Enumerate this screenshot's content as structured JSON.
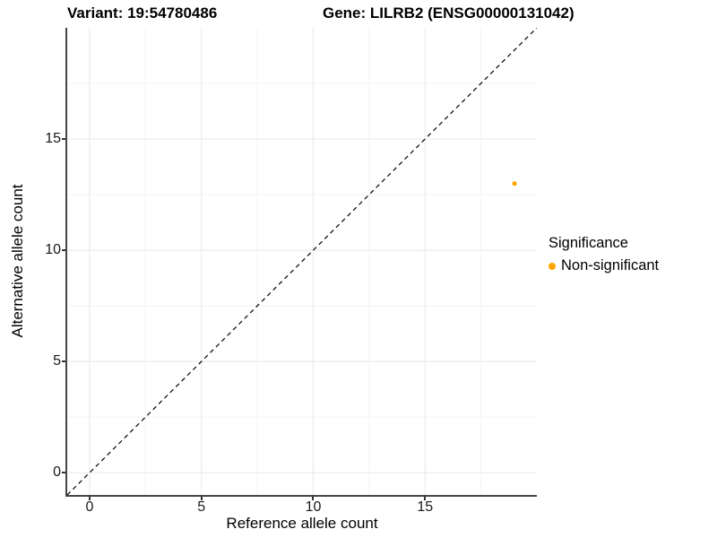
{
  "titles": {
    "variant": "Variant: 19:54780486",
    "gene": "Gene: LILRB2 (ENSG00000131042)"
  },
  "axes": {
    "x_label": "Reference allele count",
    "y_label": "Alternative allele count"
  },
  "legend": {
    "title": "Significance",
    "items": [
      {
        "label": "Non-significant",
        "color": "#FFA500"
      }
    ]
  },
  "chart_data": {
    "type": "scatter",
    "title": "Variant: 19:54780486    Gene: LILRB2 (ENSG00000131042)",
    "xlabel": "Reference allele count",
    "ylabel": "Alternative allele count",
    "xlim": [
      -1,
      20
    ],
    "ylim": [
      -1,
      20
    ],
    "x_ticks": [
      0,
      5,
      10,
      15
    ],
    "y_ticks": [
      0,
      5,
      10,
      15
    ],
    "x_minor_ticks": [
      2.5,
      7.5,
      12.5,
      17.5
    ],
    "y_minor_ticks": [
      2.5,
      7.5,
      12.5,
      17.5
    ],
    "grid": true,
    "legend_position": "right",
    "series": [
      {
        "name": "Non-significant",
        "color": "#FFA500",
        "points": [
          {
            "x": 19,
            "y": 13
          }
        ],
        "point_radius": 2.6
      }
    ],
    "reference_line": {
      "type": "identity y=x",
      "style": "dashed",
      "color": "#000000",
      "from": [
        -1,
        -1
      ],
      "to": [
        20,
        20
      ]
    },
    "grid_major_color": "#e8e8e8",
    "grid_minor_color": "#f3f3f3"
  }
}
